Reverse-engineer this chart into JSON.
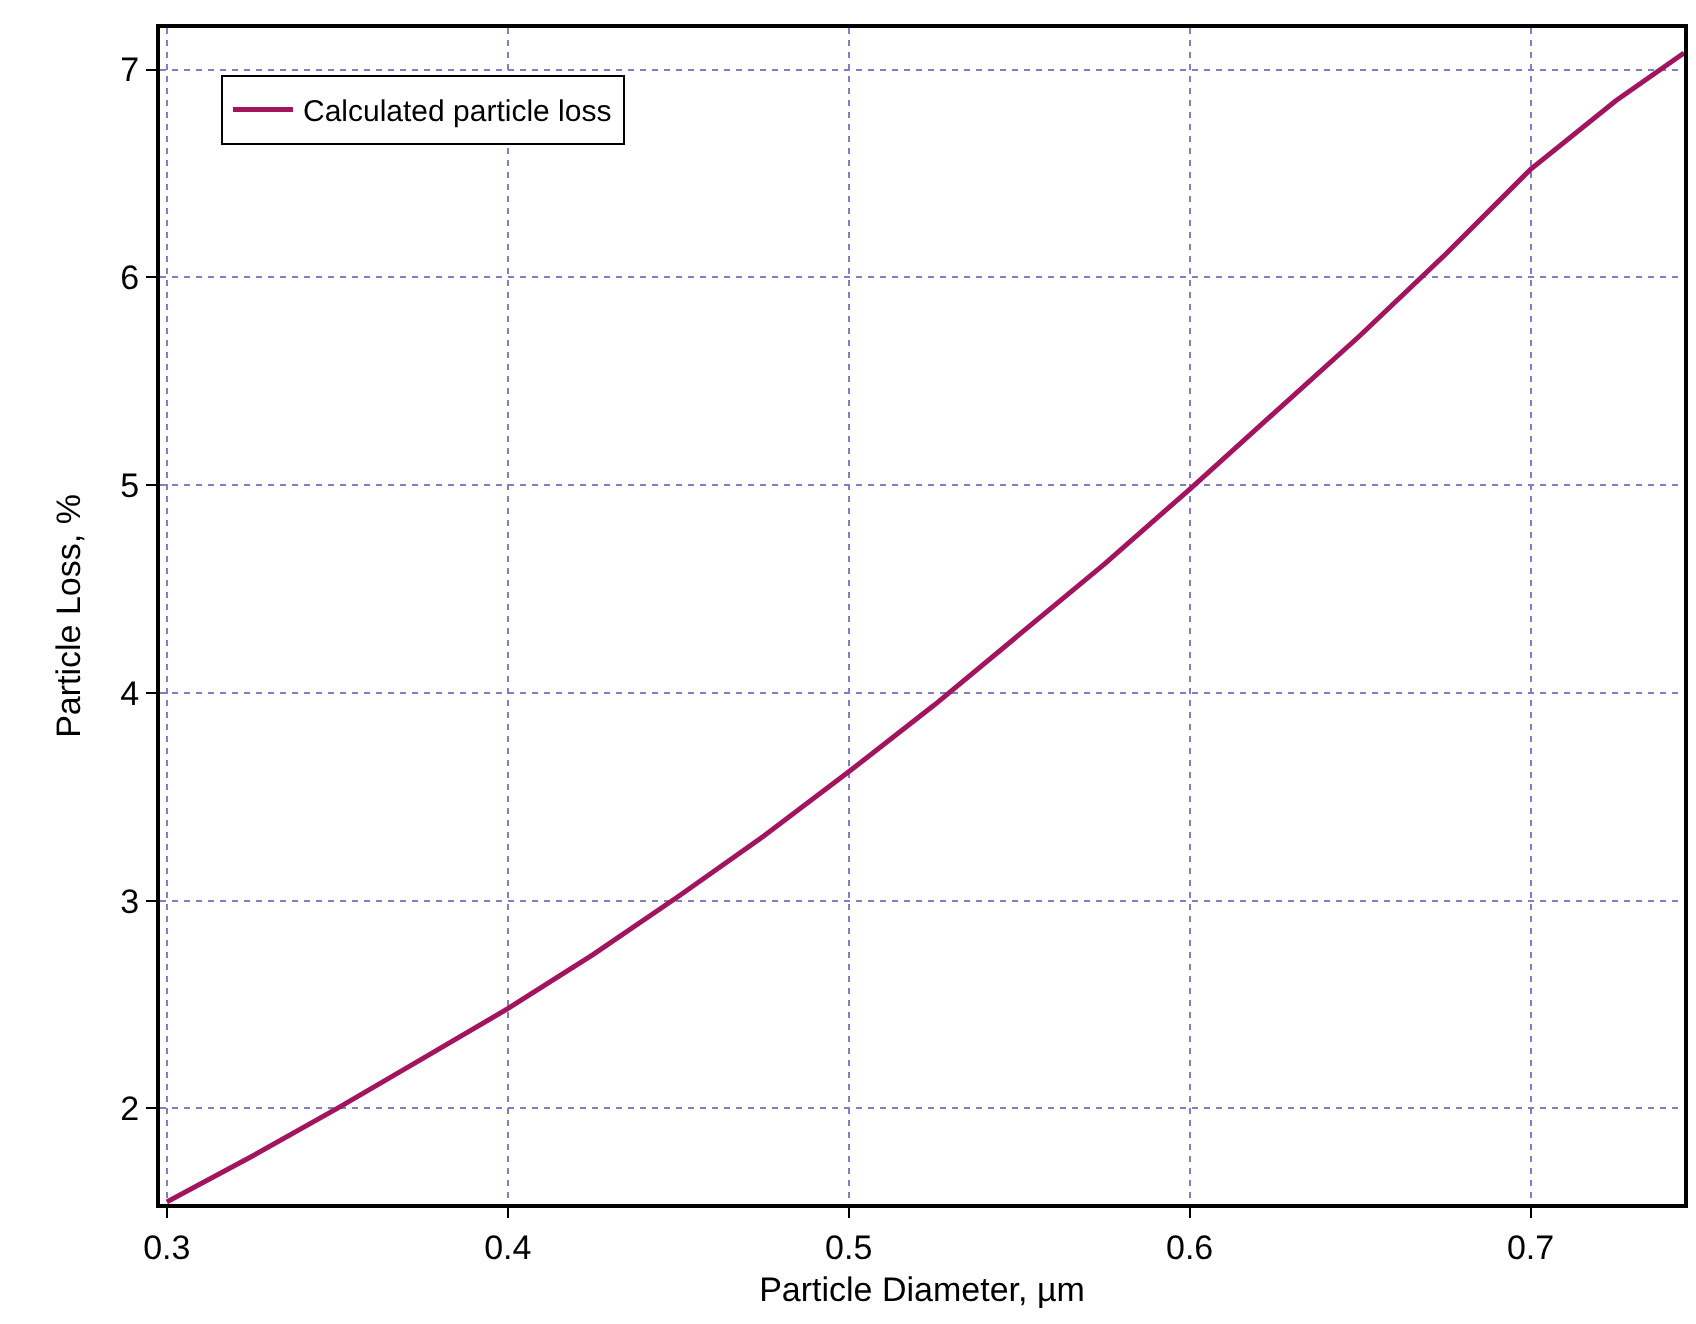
{
  "chart_data": {
    "type": "line",
    "xlabel": "Particle Diameter, µm",
    "ylabel": "Particle Loss, %",
    "x": [
      0.3,
      0.325,
      0.35,
      0.375,
      0.4,
      0.425,
      0.45,
      0.475,
      0.5,
      0.525,
      0.55,
      0.575,
      0.6,
      0.625,
      0.65,
      0.675,
      0.7,
      0.725,
      0.745
    ],
    "series": [
      {
        "name": "Calculated particle loss",
        "color": "#a3145f",
        "values": [
          1.55,
          1.77,
          2.0,
          2.24,
          2.48,
          2.74,
          3.02,
          3.31,
          3.62,
          3.94,
          4.28,
          4.62,
          4.98,
          5.35,
          5.72,
          6.11,
          6.52,
          6.85,
          7.08
        ]
      }
    ],
    "xlim": [
      0.298,
      0.745
    ],
    "xticks": [
      0.3,
      0.4,
      0.5,
      0.6,
      0.7
    ],
    "ylim": [
      1.54,
      7.2
    ],
    "yticks": [
      2,
      3,
      4,
      5,
      6,
      7
    ],
    "grid": true,
    "legend": "top left",
    "marker": "none",
    "line_style": "solid"
  }
}
